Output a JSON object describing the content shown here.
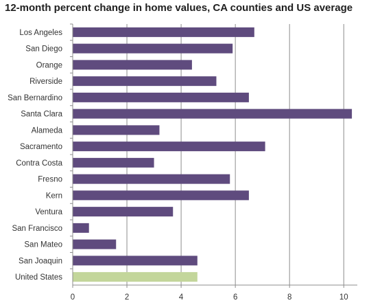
{
  "chart_data": {
    "type": "bar",
    "orientation": "horizontal",
    "title": "12-month percent change in home values, CA counties and US average",
    "categories": [
      "Los Angeles",
      "San Diego",
      "Orange",
      "Riverside",
      "San Bernardino",
      "Santa Clara",
      "Alameda",
      "Sacramento",
      "Contra Costa",
      "Fresno",
      "Kern",
      "Ventura",
      "San Francisco",
      "San Mateo",
      "San Joaquin",
      "United States"
    ],
    "values": [
      6.7,
      5.9,
      4.4,
      5.3,
      6.5,
      10.3,
      3.2,
      7.1,
      3.0,
      5.8,
      6.5,
      3.7,
      0.6,
      1.6,
      4.6,
      4.6
    ],
    "bar_colors": [
      "#5f4b7e",
      "#5f4b7e",
      "#5f4b7e",
      "#5f4b7e",
      "#5f4b7e",
      "#5f4b7e",
      "#5f4b7e",
      "#5f4b7e",
      "#5f4b7e",
      "#5f4b7e",
      "#5f4b7e",
      "#5f4b7e",
      "#5f4b7e",
      "#5f4b7e",
      "#5f4b7e",
      "#c3d69b"
    ],
    "xlim": [
      0,
      10.5
    ],
    "xticks": [
      0,
      2,
      4,
      6,
      8,
      10
    ],
    "xlabel": "",
    "ylabel": "",
    "grid": "vertical",
    "legend": "none"
  }
}
